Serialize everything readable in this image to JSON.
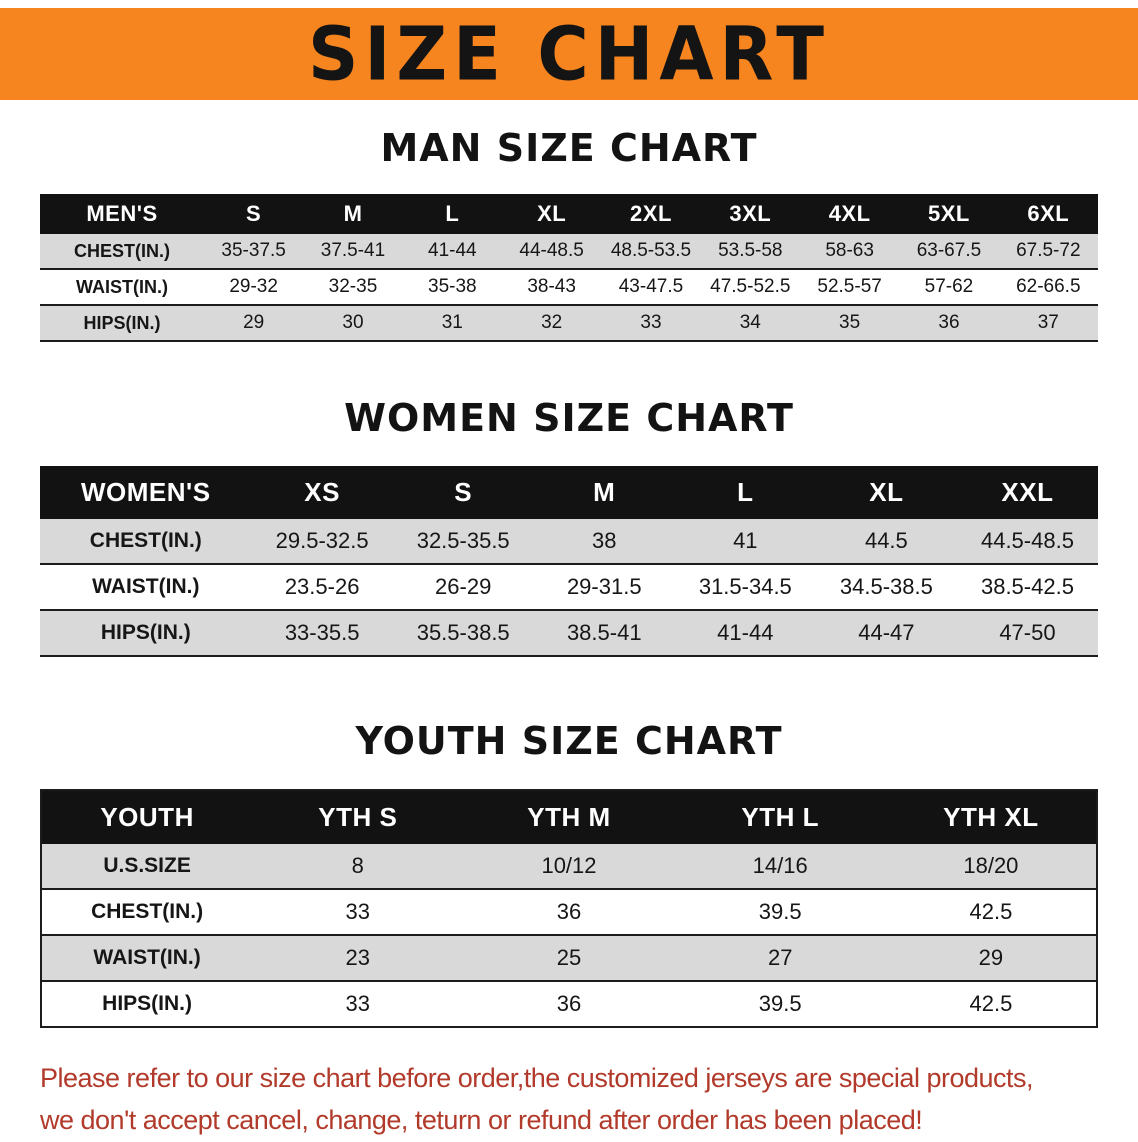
{
  "colors": {
    "banner_orange": "#F6851F",
    "table_header_black": "#121212",
    "row_shade_gray": "#D9D9D9",
    "footer_red": "#B23A2A"
  },
  "banner": {
    "title": "SIZE CHART"
  },
  "sections": [
    {
      "id": "men",
      "heading": "MAN SIZE CHART",
      "table": {
        "header": [
          "MEN'S",
          "S",
          "M",
          "L",
          "XL",
          "2XL",
          "3XL",
          "4XL",
          "5XL",
          "6XL"
        ],
        "rows": [
          {
            "label": "CHEST(IN.)",
            "values": [
              "35-37.5",
              "37.5-41",
              "41-44",
              "44-48.5",
              "48.5-53.5",
              "53.5-58",
              "58-63",
              "63-67.5",
              "67.5-72"
            ]
          },
          {
            "label": "WAIST(IN.)",
            "values": [
              "29-32",
              "32-35",
              "35-38",
              "38-43",
              "43-47.5",
              "47.5-52.5",
              "52.5-57",
              "57-62",
              "62-66.5"
            ]
          },
          {
            "label": "HIPS(IN.)",
            "values": [
              "29",
              "30",
              "31",
              "32",
              "33",
              "34",
              "35",
              "36",
              "37"
            ]
          }
        ]
      }
    },
    {
      "id": "women",
      "heading": "WOMEN SIZE CHART",
      "table": {
        "header": [
          "WOMEN'S",
          "XS",
          "S",
          "M",
          "L",
          "XL",
          "XXL"
        ],
        "rows": [
          {
            "label": "CHEST(IN.)",
            "values": [
              "29.5-32.5",
              "32.5-35.5",
              "38",
              "41",
              "44.5",
              "44.5-48.5"
            ]
          },
          {
            "label": "WAIST(IN.)",
            "values": [
              "23.5-26",
              "26-29",
              "29-31.5",
              "31.5-34.5",
              "34.5-38.5",
              "38.5-42.5"
            ]
          },
          {
            "label": "HIPS(IN.)",
            "values": [
              "33-35.5",
              "35.5-38.5",
              "38.5-41",
              "41-44",
              "44-47",
              "47-50"
            ]
          }
        ]
      }
    },
    {
      "id": "youth",
      "heading": "YOUTH SIZE CHART",
      "table": {
        "header": [
          "YOUTH",
          "YTH S",
          "YTH M",
          "YTH L",
          "YTH XL"
        ],
        "rows": [
          {
            "label": "U.S.SIZE",
            "values": [
              "8",
              "10/12",
              "14/16",
              "18/20"
            ]
          },
          {
            "label": "CHEST(IN.)",
            "values": [
              "33",
              "36",
              "39.5",
              "42.5"
            ]
          },
          {
            "label": "WAIST(IN.)",
            "values": [
              "23",
              "25",
              "27",
              "29"
            ]
          },
          {
            "label": "HIPS(IN.)",
            "values": [
              "33",
              "36",
              "39.5",
              "42.5"
            ]
          }
        ]
      }
    }
  ],
  "footer": {
    "line1": "Please refer to our size chart before order,the customized jerseys are special products,",
    "line2": "we don't accept cancel, change, teturn or refund after order has been placed!"
  }
}
